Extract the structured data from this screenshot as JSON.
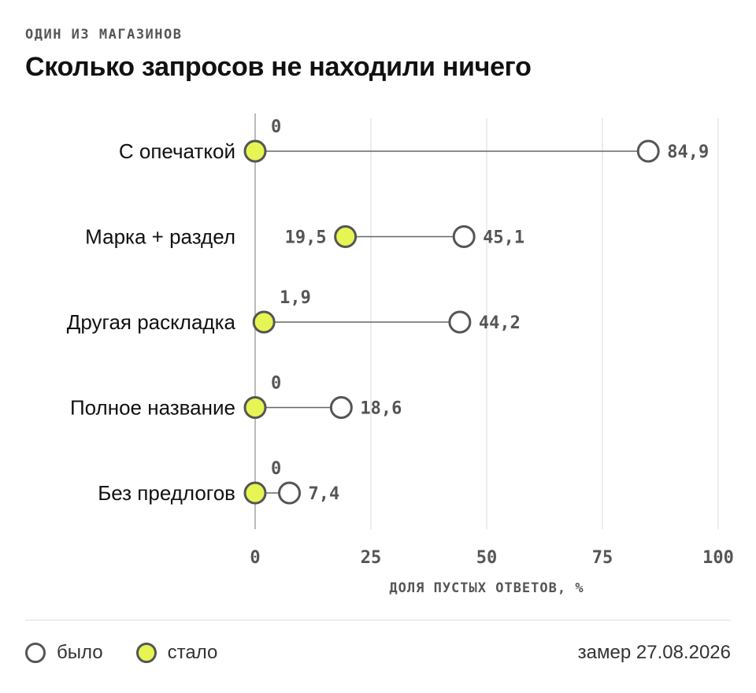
{
  "kicker": "ОДИН ИЗ МАГАЗИНОВ",
  "title": "Сколько запросов не находили ничего",
  "chart_data": {
    "type": "dumbbell",
    "xlabel": "ДОЛЯ ПУСТЫХ ОТВЕТОВ, %",
    "xlim": [
      0,
      100
    ],
    "xticks": [
      0,
      25,
      50,
      75,
      100
    ],
    "grid": true,
    "categories": [
      "С опечаткой",
      "Марка + раздел",
      "Другая раскладка",
      "Полное название",
      "Без предлогов"
    ],
    "series": [
      {
        "name": "было",
        "values": [
          84.9,
          45.1,
          44.2,
          18.6,
          7.4
        ],
        "labels": [
          "84,9",
          "45,1",
          "44,2",
          "18,6",
          "7,4"
        ],
        "color": "#ffffff"
      },
      {
        "name": "стало",
        "values": [
          0,
          19.5,
          1.9,
          0,
          0
        ],
        "labels": [
          "0",
          "19,5",
          "1,9",
          "0",
          "0"
        ],
        "color": "#e6f553"
      }
    ],
    "colors": {
      "stroke": "#555555",
      "grid": "#e6e6e6",
      "axis": "#bbbbbb",
      "connector": "#666666"
    }
  },
  "legend": {
    "before": "было",
    "after": "стало"
  },
  "footer": {
    "date": "замер 27.08.2026"
  }
}
